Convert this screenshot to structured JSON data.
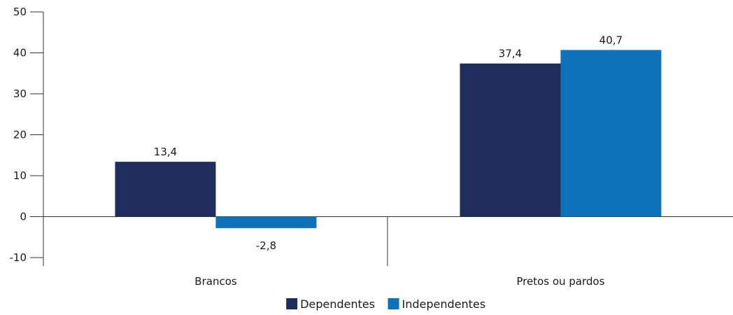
{
  "chart_data": {
    "type": "bar",
    "categories": [
      "Brancos",
      "Pretos ou pardos"
    ],
    "series": [
      {
        "name": "Dependentes",
        "values": [
          13.4,
          37.4
        ],
        "labels": [
          "13,4",
          "37,4"
        ],
        "color": "#1f2d5c"
      },
      {
        "name": "Independentes",
        "values": [
          -2.8,
          40.7
        ],
        "labels": [
          "-2,8",
          "40,7"
        ],
        "color": "#0d72b9"
      }
    ],
    "title": "",
    "xlabel": "",
    "ylabel": "",
    "ylim": [
      -10,
      50
    ],
    "yticks": [
      50,
      40,
      30,
      20,
      10,
      0,
      -10
    ],
    "grid": false,
    "legend_position": "bottom-center"
  }
}
